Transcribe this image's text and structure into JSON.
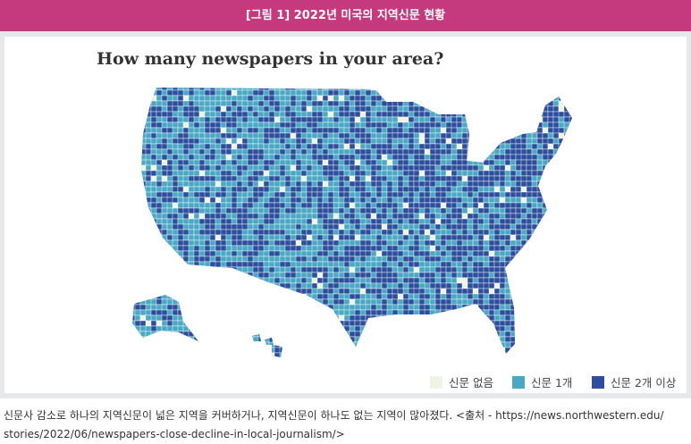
{
  "header": {
    "title": "[그림 1] 2022년 미국의 지역신문 현황"
  },
  "map": {
    "title": "How many newspapers in your area?",
    "colors": {
      "none": "#eef4e4",
      "one": "#4aa8c4",
      "two_plus": "#2c4e9c"
    },
    "legend": [
      {
        "label": "신문 없음",
        "color": "#eef4e4"
      },
      {
        "label": "신문 1개",
        "color": "#4aa8c4"
      },
      {
        "label": "신문 2개 이상",
        "color": "#2c4e9c"
      }
    ]
  },
  "caption": {
    "line1": "신문사 감소로 하나의 지역신문이 넓은 지역을 커버하거나, 지역신문이 하나도 없는 지역이 많아졌다. <출처 - https://news.northwestern.edu/",
    "line2": "stories/2022/06/newspapers-close-decline-in-local-journalism/>"
  }
}
